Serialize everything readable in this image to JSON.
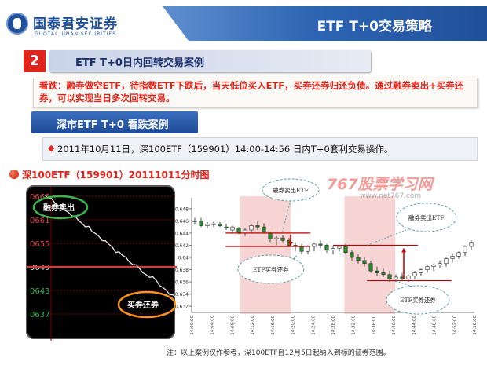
{
  "header": {
    "logo_cn": "国泰君安证券",
    "logo_en": "GUOTAI JUNAN SECURITIES",
    "title": "ETF T+0交易策略"
  },
  "section": {
    "number": "2",
    "title": "ETF  T+0日内回转交易案例"
  },
  "note": "看跌：融券做空ETF，待指数ETF下跌后，当天低位买入ETF，买券还券归还负债。通过融券卖出+买券还券，可以实现当日多次回转交易。",
  "subtab": "深市ETF  T+0 看跌案例",
  "info": {
    "bullet": "◆",
    "text": "2011年10月11日，深100ETF（159901）14:00-14:56 日内T+0套利交易操作。"
  },
  "caption": "深100ETF（159901）20111011分时图",
  "watermark": {
    "main": "767股票学习网",
    "url": "www.net767.com"
  },
  "left_chart": {
    "y_labels": [
      "0666",
      "0661",
      "0655",
      "0649",
      "0643",
      "0637"
    ],
    "callout_sell": "融券卖出",
    "callout_buy": "买券还券",
    "colors": {
      "price": "#e8e8e8",
      "grid": "#7a0000",
      "hline": "#ff2a2a",
      "ring": "#39b54a",
      "ring2": "#f7941d",
      "label": "#39b54a"
    }
  },
  "chart_data": {
    "type": "candlestick",
    "y_ticks": [
      0.632,
      0.634,
      0.636,
      0.638,
      0.64,
      0.642,
      0.644,
      0.646,
      0.648
    ],
    "ylim": [
      0.631,
      0.649
    ],
    "x_ticks": [
      "14:00:00",
      "14:04:00",
      "14:08:00",
      "14:12:00",
      "14:16:00",
      "14:20:00",
      "14:24:00",
      "14:28:00",
      "14:32:00",
      "14:36:00",
      "14:40:00",
      "14:44:00",
      "14:48:00",
      "14:52:00",
      "14:56:00"
    ],
    "ohlc": [
      [
        0.646,
        0.6465,
        0.6455,
        0.646
      ],
      [
        0.646,
        0.6465,
        0.645,
        0.6452
      ],
      [
        0.6452,
        0.6458,
        0.6448,
        0.6455
      ],
      [
        0.6455,
        0.646,
        0.645,
        0.6455
      ],
      [
        0.6455,
        0.6458,
        0.645,
        0.6452
      ],
      [
        0.645,
        0.6455,
        0.6445,
        0.6448
      ],
      [
        0.6445,
        0.6452,
        0.644,
        0.645
      ],
      [
        0.6448,
        0.645,
        0.6438,
        0.644
      ],
      [
        0.644,
        0.6448,
        0.6435,
        0.6445
      ],
      [
        0.6445,
        0.6455,
        0.644,
        0.6452
      ],
      [
        0.6452,
        0.646,
        0.6445,
        0.645
      ],
      [
        0.645,
        0.6456,
        0.644,
        0.6442
      ],
      [
        0.644,
        0.6442,
        0.6425,
        0.643
      ],
      [
        0.643,
        0.6435,
        0.642,
        0.6432
      ],
      [
        0.6432,
        0.6436,
        0.6425,
        0.6428
      ],
      [
        0.6428,
        0.6432,
        0.6418,
        0.642
      ],
      [
        0.642,
        0.6425,
        0.641,
        0.6418
      ],
      [
        0.6418,
        0.6422,
        0.6405,
        0.641
      ],
      [
        0.641,
        0.642,
        0.6405,
        0.6418
      ],
      [
        0.6418,
        0.6425,
        0.641,
        0.6422
      ],
      [
        0.6422,
        0.6428,
        0.6415,
        0.642
      ],
      [
        0.642,
        0.6422,
        0.6408,
        0.6412
      ],
      [
        0.6412,
        0.6418,
        0.6405,
        0.6415
      ],
      [
        0.6415,
        0.642,
        0.641,
        0.6418
      ],
      [
        0.6418,
        0.6422,
        0.6405,
        0.6408
      ],
      [
        0.6408,
        0.6412,
        0.6395,
        0.64
      ],
      [
        0.64,
        0.6405,
        0.639,
        0.6395
      ],
      [
        0.6395,
        0.64,
        0.6385,
        0.639
      ],
      [
        0.639,
        0.6395,
        0.6375,
        0.6378
      ],
      [
        0.6378,
        0.6385,
        0.637,
        0.6375
      ],
      [
        0.6375,
        0.6382,
        0.6368,
        0.6372
      ],
      [
        0.6372,
        0.6378,
        0.636,
        0.6365
      ],
      [
        0.6365,
        0.6372,
        0.636,
        0.6368
      ],
      [
        0.6368,
        0.6375,
        0.6362,
        0.6365
      ],
      [
        0.6365,
        0.6372,
        0.636,
        0.637
      ],
      [
        0.637,
        0.6378,
        0.6365,
        0.6375
      ],
      [
        0.6375,
        0.6382,
        0.637,
        0.638
      ],
      [
        0.638,
        0.6388,
        0.6375,
        0.6385
      ],
      [
        0.6385,
        0.639,
        0.6378,
        0.6388
      ],
      [
        0.6388,
        0.6395,
        0.6382,
        0.639
      ],
      [
        0.639,
        0.64,
        0.6385,
        0.6398
      ],
      [
        0.6398,
        0.6405,
        0.6392,
        0.6402
      ],
      [
        0.6402,
        0.641,
        0.6398,
        0.6408
      ],
      [
        0.6408,
        0.642,
        0.6402,
        0.6418
      ],
      [
        0.6418,
        0.6428,
        0.6412,
        0.6425
      ]
    ],
    "sell_level_1": 0.644,
    "buy_level_1": 0.6418,
    "sell_level_2": 0.642,
    "buy_level_2": 0.6362,
    "annotations": {
      "sell_1": "融券卖出ETF",
      "buy_1": "ETF买券还券",
      "sell_2": "融券卖出ETF",
      "buy_2": "ETF买券还券"
    },
    "highlight_ranges": [
      [
        0.17,
        0.35
      ],
      [
        0.54,
        0.72
      ]
    ],
    "colors": {
      "up": "#ffffff",
      "down": "#2a8a2a",
      "shade": "#f6cbcb",
      "line": "#c00000",
      "arrow": "#d40000"
    }
  },
  "footer": "注：以上案例仅作参考，深100ETF自12月5日起纳入到标的证券范围。"
}
